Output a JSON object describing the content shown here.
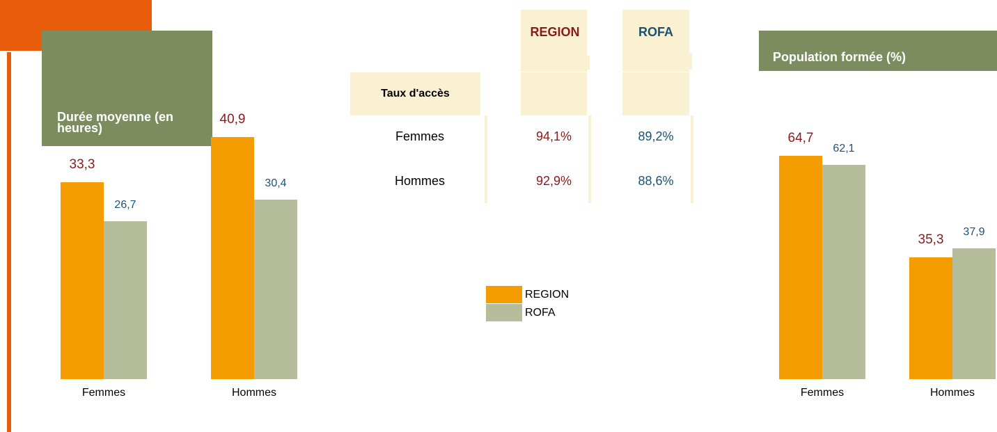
{
  "chart_data": [
    {
      "type": "bar",
      "title": "Durée moyenne (en heures)",
      "categories": [
        "Femmes",
        "Hommes"
      ],
      "series": [
        {
          "name": "REGION",
          "color": "#f59c00",
          "label_color": "#8b1a1a",
          "values": [
            33.3,
            40.9
          ],
          "value_labels": [
            "33,3",
            "40,9"
          ]
        },
        {
          "name": "ROFA",
          "color": "#b5bd9a",
          "label_color": "#1a5276",
          "values": [
            26.7,
            30.4
          ],
          "value_labels": [
            "26,7",
            "30,4"
          ]
        }
      ]
    },
    {
      "type": "bar",
      "title": "Population formée (%)",
      "categories": [
        "Femmes",
        "Hommes"
      ],
      "series": [
        {
          "name": "REGION",
          "color": "#f59c00",
          "label_color": "#8b1a1a",
          "values": [
            64.7,
            35.3
          ],
          "value_labels": [
            "64,7",
            "35,3"
          ]
        },
        {
          "name": "ROFA",
          "color": "#b5bd9a",
          "label_color": "#1a5276",
          "values": [
            62.1,
            37.9
          ],
          "value_labels": [
            "62,1",
            "37,9"
          ]
        }
      ]
    }
  ],
  "table": {
    "columns": [
      "REGION",
      "ROFA"
    ],
    "row_header": "Taux d'accès",
    "rows": [
      [
        "Femmes",
        "94,1%",
        "89,2%"
      ],
      [
        "Hommes",
        "92,9%",
        "88,6%"
      ]
    ]
  }
}
